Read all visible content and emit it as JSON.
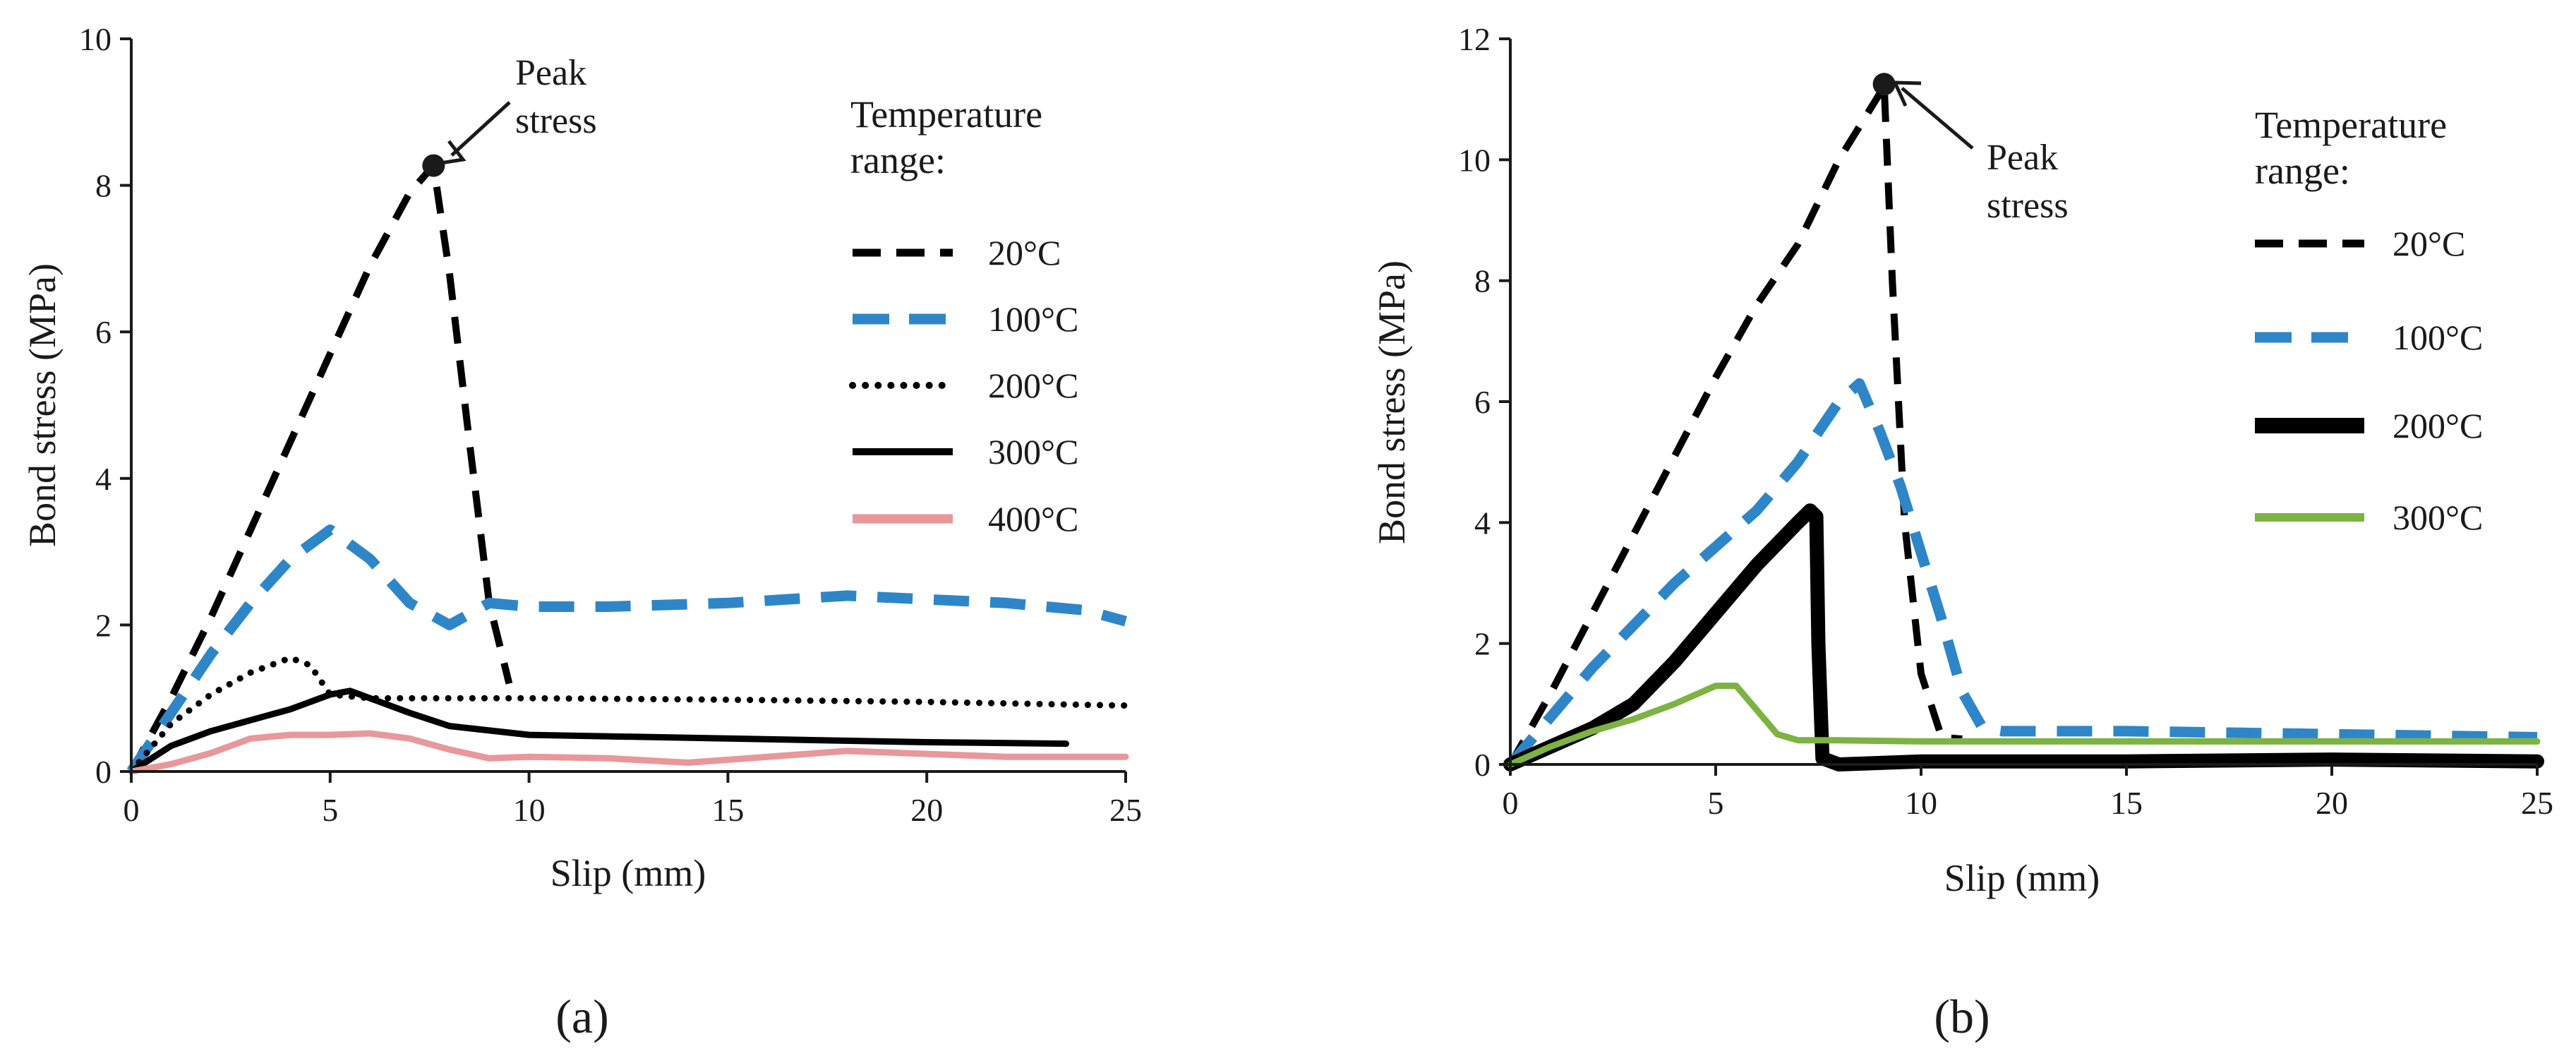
{
  "figure": {
    "panel_labels": [
      "(a)",
      "(b)"
    ]
  },
  "chart_data": [
    {
      "id": "a",
      "type": "line",
      "xlabel": "Slip (mm)",
      "ylabel": "Bond stress (MPa)",
      "xlim": [
        0,
        25
      ],
      "ylim": [
        0,
        10
      ],
      "xticks": [
        0,
        5,
        10,
        15,
        20,
        25
      ],
      "yticks": [
        0,
        2,
        4,
        6,
        8,
        10
      ],
      "grid": false,
      "legend_title": [
        "Temperature",
        "range:"
      ],
      "legend_position": "right",
      "annotation": {
        "text": [
          "Peak",
          "stress"
        ],
        "point": [
          7.6,
          8.27
        ]
      },
      "series": [
        {
          "name": "20°C",
          "color": "#000000",
          "style": "dash",
          "x": [
            0,
            1,
            2,
            3,
            4,
            5,
            6,
            7,
            7.6,
            8.0,
            8.5,
            9.0,
            9.5
          ],
          "y": [
            0,
            1.0,
            2.1,
            3.3,
            4.5,
            5.7,
            6.9,
            7.9,
            8.27,
            6.8,
            4.5,
            2.3,
            1.2
          ]
        },
        {
          "name": "100°C",
          "color": "#2E86C8",
          "style": "longdash",
          "x": [
            0,
            1,
            2,
            3,
            4,
            5,
            6,
            7,
            8,
            9,
            10,
            12,
            15,
            18,
            20,
            22,
            24,
            25
          ],
          "y": [
            0,
            0.8,
            1.6,
            2.3,
            2.9,
            3.3,
            2.9,
            2.3,
            2.0,
            2.3,
            2.25,
            2.25,
            2.3,
            2.4,
            2.35,
            2.3,
            2.2,
            2.05
          ]
        },
        {
          "name": "200°C",
          "color": "#000000",
          "style": "dot",
          "x": [
            0,
            1,
            2,
            3,
            4,
            4.5,
            5,
            6,
            8,
            10,
            15,
            20,
            25
          ],
          "y": [
            0,
            0.65,
            1.05,
            1.35,
            1.55,
            1.45,
            1.05,
            1.0,
            1.0,
            1.0,
            0.98,
            0.95,
            0.9
          ]
        },
        {
          "name": "300°C",
          "color": "#000000",
          "style": "solid",
          "x": [
            0,
            1,
            2,
            3,
            4,
            5,
            5.5,
            6,
            7,
            8,
            10,
            15,
            20,
            23.5
          ],
          "y": [
            0,
            0.35,
            0.55,
            0.7,
            0.85,
            1.05,
            1.1,
            1.0,
            0.8,
            0.62,
            0.5,
            0.45,
            0.4,
            0.38
          ]
        },
        {
          "name": "400°C",
          "color": "#E8979A",
          "style": "solid",
          "x": [
            0,
            1,
            2,
            3,
            4,
            5,
            6,
            7,
            8,
            9,
            10,
            12,
            14,
            16,
            18,
            20,
            22,
            25
          ],
          "y": [
            0,
            0.1,
            0.25,
            0.45,
            0.5,
            0.5,
            0.52,
            0.45,
            0.3,
            0.18,
            0.2,
            0.18,
            0.12,
            0.2,
            0.28,
            0.24,
            0.2,
            0.2
          ]
        }
      ]
    },
    {
      "id": "b",
      "type": "line",
      "xlabel": "Slip (mm)",
      "ylabel": "Bond stress (MPa)",
      "xlim": [
        0,
        25
      ],
      "ylim": [
        0,
        12
      ],
      "xticks": [
        0,
        5,
        10,
        15,
        20,
        25
      ],
      "yticks": [
        0,
        2,
        4,
        6,
        8,
        10,
        12
      ],
      "grid": false,
      "legend_title": [
        "Temperature",
        "range:"
      ],
      "legend_position": "right",
      "annotation": {
        "text": [
          "Peak",
          "stress"
        ],
        "point": [
          9.1,
          11.25
        ]
      },
      "series": [
        {
          "name": "20°C",
          "color": "#000000",
          "style": "dash",
          "x": [
            0,
            1,
            2,
            3,
            4,
            5,
            6,
            7,
            8,
            9,
            9.1,
            9.3,
            9.6,
            10,
            10.5,
            11
          ],
          "y": [
            0,
            1.2,
            2.5,
            3.8,
            5.1,
            6.4,
            7.6,
            8.6,
            10.0,
            11.1,
            11.25,
            8.0,
            4.0,
            1.5,
            0.45,
            0.42
          ]
        },
        {
          "name": "100°C",
          "color": "#2E86C8",
          "style": "longdash",
          "x": [
            0,
            1,
            2,
            3,
            4,
            5,
            6,
            7,
            8,
            8.5,
            9,
            9.5,
            10,
            10.5,
            11,
            11.5,
            12,
            15,
            20,
            25
          ],
          "y": [
            0,
            0.8,
            1.6,
            2.3,
            3.0,
            3.6,
            4.2,
            5.0,
            6.0,
            6.3,
            5.5,
            4.6,
            3.5,
            2.4,
            1.2,
            0.6,
            0.55,
            0.55,
            0.5,
            0.45
          ]
        },
        {
          "name": "200°C",
          "color": "#000000",
          "style": "thick",
          "x": [
            0,
            1,
            2,
            3,
            4,
            5,
            6,
            7,
            7.3,
            7.45,
            7.5,
            7.6,
            8,
            10,
            15,
            20,
            25
          ],
          "y": [
            0,
            0.3,
            0.6,
            1.0,
            1.7,
            2.5,
            3.3,
            4.0,
            4.2,
            4.1,
            2.0,
            0.1,
            0.0,
            0.05,
            0.05,
            0.08,
            0.05
          ]
        },
        {
          "name": "300°C",
          "color": "#7CB342",
          "style": "solid",
          "x": [
            0,
            1,
            2,
            3,
            4,
            5,
            5.5,
            6,
            6.5,
            7,
            8,
            10,
            15,
            20,
            25
          ],
          "y": [
            0,
            0.3,
            0.55,
            0.75,
            1.0,
            1.3,
            1.3,
            0.9,
            0.5,
            0.4,
            0.4,
            0.38,
            0.38,
            0.38,
            0.38
          ]
        }
      ]
    }
  ]
}
